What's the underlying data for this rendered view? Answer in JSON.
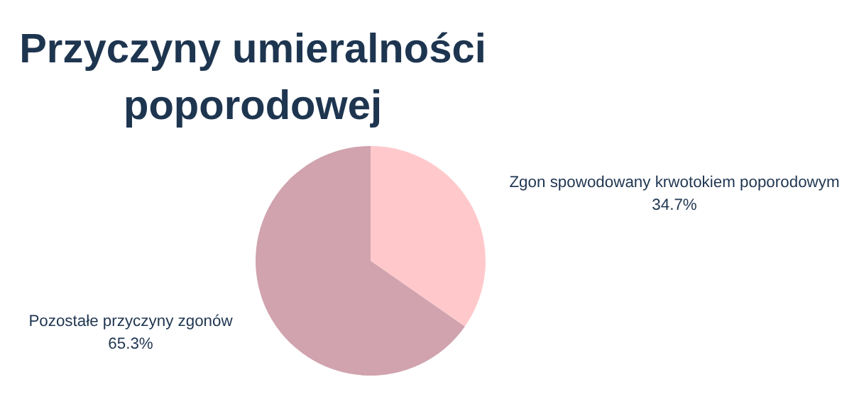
{
  "chart_data": {
    "type": "pie",
    "title": "Przyczyny umieralności poporodowej",
    "categories": [
      "Zgon spowodowany krwotokiem poporodowym",
      "Pozostałe przyczyny zgonów"
    ],
    "values": [
      34.7,
      65.3
    ],
    "value_labels": [
      "34.7%",
      "65.3%"
    ],
    "colors": [
      "#ffc9cc",
      "#d0a3ae"
    ]
  }
}
